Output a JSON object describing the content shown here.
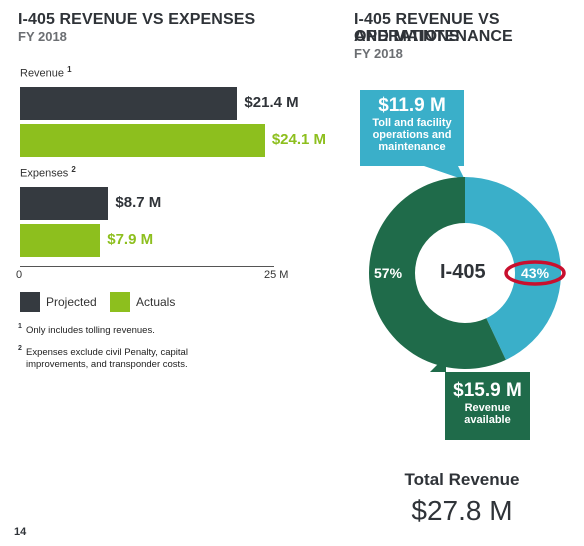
{
  "left": {
    "title": "I-405 REVENUE VS EXPENSES",
    "subtitle": "FY 2018",
    "axis_ticks": [
      "0",
      "25 M"
    ],
    "legend": {
      "projected": "Projected",
      "actuals": "Actuals"
    },
    "footnotes": [
      {
        "num": "1",
        "text": "Only includes tolling revenues."
      },
      {
        "num": "2",
        "text": "Expenses exclude civil Penalty, capital improvements, and transponder costs."
      }
    ]
  },
  "right": {
    "title_line1": "I-405 REVENUE VS OPERATIONS",
    "title_line2": "AND MAINTENANCE",
    "subtitle": "FY 2018",
    "callout_top": {
      "value": "$11.9 M",
      "line1": "Toll and facility",
      "line2": "operations and",
      "line3": "maintenance"
    },
    "callout_bottom": {
      "value": "$15.9 M",
      "line1": "Revenue",
      "line2": "available"
    },
    "center_label": "I-405",
    "total_label": "Total Revenue",
    "total_value": "$27.8 M"
  },
  "page_number": "14",
  "colors": {
    "projected": "#353a40",
    "actuals": "#8dbf1e",
    "om": "#3aafc9",
    "revenue_available": "#1f6b4a",
    "highlight": "#c8102e"
  },
  "chart_data": [
    {
      "type": "bar",
      "orientation": "horizontal",
      "title": "I-405 REVENUE VS EXPENSES",
      "subtitle": "FY 2018",
      "xlim": [
        0,
        25
      ],
      "groups": [
        {
          "label": "Revenue",
          "note": "1",
          "bars": [
            {
              "series": "Projected",
              "value": 21.4,
              "label": "$21.4 M"
            },
            {
              "series": "Actuals",
              "value": 24.1,
              "label": "$24.1 M"
            }
          ]
        },
        {
          "label": "Expenses",
          "note": "2",
          "bars": [
            {
              "series": "Projected",
              "value": 8.7,
              "label": "$8.7 M"
            },
            {
              "series": "Actuals",
              "value": 7.9,
              "label": "$7.9 M"
            }
          ]
        }
      ],
      "legend": [
        "Projected",
        "Actuals"
      ]
    },
    {
      "type": "pie",
      "title": "I-405 REVENUE VS OPERATIONS AND MAINTENANCE",
      "subtitle": "FY 2018",
      "slices": [
        {
          "label": "Toll and facility operations and maintenance",
          "value": 43,
          "text": "43%",
          "amount": "$11.9 M"
        },
        {
          "label": "Revenue available",
          "value": 57,
          "text": "57%",
          "amount": "$15.9 M"
        }
      ]
    }
  ]
}
